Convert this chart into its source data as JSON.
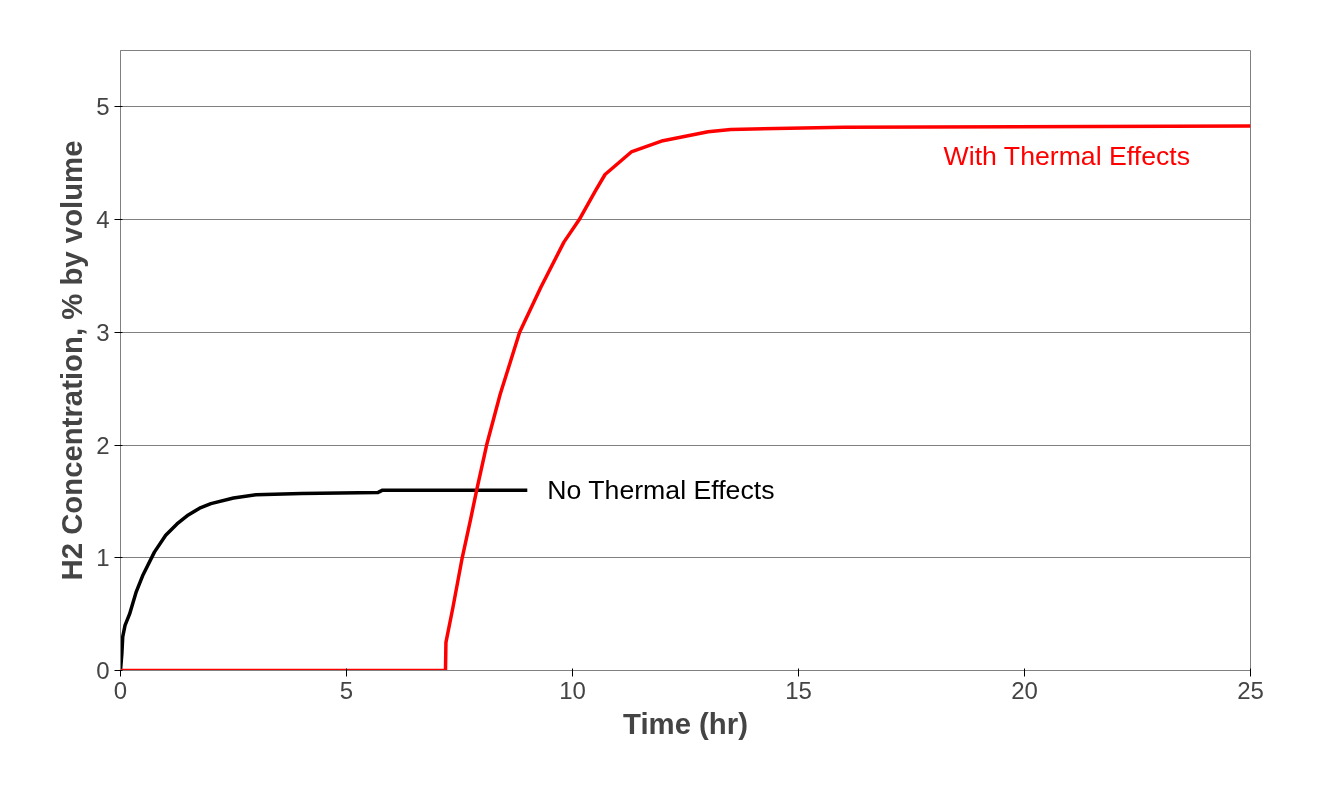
{
  "chart_data": {
    "type": "line",
    "xlabel": "Time (hr)",
    "ylabel": "H2 Concentration, % by volume",
    "xlim": [
      0,
      25
    ],
    "ylim": [
      0,
      5.5
    ],
    "xticks": [
      0,
      5,
      10,
      15,
      20,
      25
    ],
    "yticks": [
      0,
      1,
      2,
      3,
      4,
      5
    ],
    "grid": "y",
    "marker": "none",
    "line_style": "solid",
    "series": [
      {
        "name": "No Thermal Effects",
        "color": "#000000",
        "x": [
          0,
          0.03,
          0.05,
          0.1,
          0.2,
          0.35,
          0.5,
          0.75,
          1,
          1.25,
          1.5,
          1.75,
          2,
          2.5,
          3,
          4,
          5.7,
          5.8,
          7,
          9
        ],
        "values": [
          0,
          0.15,
          0.3,
          0.4,
          0.5,
          0.7,
          0.85,
          1.05,
          1.2,
          1.3,
          1.38,
          1.44,
          1.48,
          1.53,
          1.56,
          1.57,
          1.58,
          1.6,
          1.6,
          1.6
        ]
      },
      {
        "name": "With Thermal Effects",
        "color": "#ff0000",
        "x": [
          0,
          7.19,
          7.2,
          7.35,
          7.56,
          7.75,
          7.88,
          8.1,
          8.4,
          8.83,
          9.3,
          9.81,
          10.15,
          10.5,
          10.72,
          11.3,
          12,
          13,
          13.5,
          16,
          25
        ],
        "values": [
          0,
          0,
          0.25,
          0.55,
          1.0,
          1.35,
          1.6,
          2.0,
          2.45,
          3.0,
          3.4,
          3.8,
          4.0,
          4.25,
          4.4,
          4.6,
          4.7,
          4.78,
          4.8,
          4.82,
          4.83
        ]
      }
    ]
  }
}
